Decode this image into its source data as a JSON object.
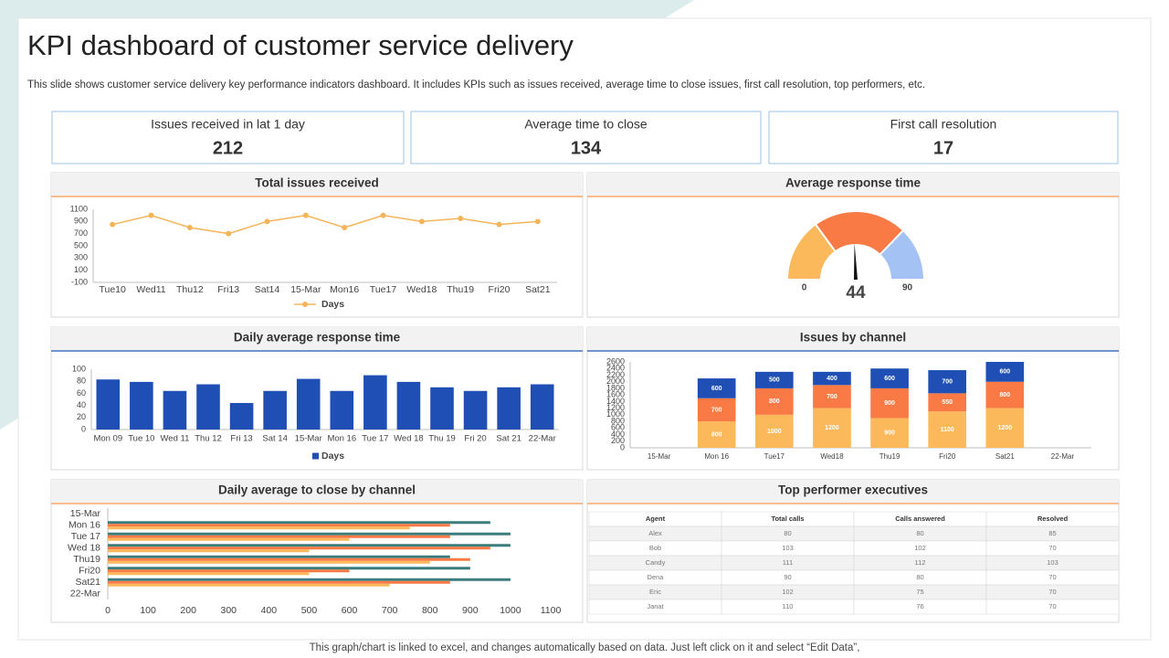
{
  "header": {
    "title": "KPI dashboard of customer service delivery",
    "subtitle": "This slide shows customer service delivery key performance indicators dashboard. It includes KPIs such as issues received, average time to close issues, first call resolution, top performers, etc."
  },
  "kpis": [
    {
      "label": "Issues received in lat 1 day",
      "value": 212
    },
    {
      "label": "Average time to close",
      "value": 134
    },
    {
      "label": "First call resolution",
      "value": 17
    }
  ],
  "chart_data": [
    {
      "type": "line",
      "title": "Total issues received",
      "categories": [
        "Tue10",
        "Wed11",
        "Thu12",
        "Fri13",
        "Sat14",
        "15-Mar",
        "Mon16",
        "Tue17",
        "Wed18",
        "Thu19",
        "Fri20",
        "Sat21"
      ],
      "series": [
        {
          "name": "Days",
          "color": "#f4b55a",
          "values": [
            850,
            1000,
            800,
            700,
            900,
            1000,
            800,
            1000,
            900,
            950,
            850,
            900
          ]
        }
      ],
      "ylim": [
        -100,
        1100
      ],
      "yticks": [
        -100,
        100,
        300,
        500,
        700,
        900,
        1100
      ]
    },
    {
      "type": "gauge",
      "title": "Average response time",
      "min": 0,
      "max": 90,
      "value": 44,
      "bands": [
        27,
        40,
        23
      ],
      "colors": [
        "#fbb95c",
        "#f97a45",
        "#a4c2f4"
      ]
    },
    {
      "type": "bar",
      "title": "Daily average response time",
      "categories": [
        "Mon 09",
        "Tue 10",
        "Wed 11",
        "Thu 12",
        "Fri 13",
        "Sat 14",
        "15-Mar",
        "Mon 16",
        "Tue 17",
        "Wed 18",
        "Thu 19",
        "Fri 20",
        "Sat 21",
        "22-Mar"
      ],
      "series": [
        {
          "name": "Days",
          "color": "#1f4fb4",
          "values": [
            83,
            79,
            64,
            75,
            44,
            64,
            84,
            64,
            90,
            79,
            70,
            64,
            70,
            75
          ]
        }
      ],
      "ylim": [
        0,
        100
      ],
      "yticks": [
        0,
        20,
        40,
        60,
        80,
        100
      ]
    },
    {
      "type": "bar",
      "stacked": true,
      "title": "Issues by channel",
      "categories": [
        "15-Mar",
        "Mon 16",
        "Tue17",
        "Wed18",
        "Thu19",
        "Fri20",
        "Sat21",
        "22-Mar"
      ],
      "series": [
        {
          "color": "#fbb95c",
          "values": [
            null,
            800,
            1000,
            1200,
            900,
            1100,
            1200,
            null
          ]
        },
        {
          "color": "#f97a45",
          "values": [
            null,
            700,
            800,
            700,
            900,
            550,
            800,
            null
          ]
        },
        {
          "color": "#1f4fb4",
          "values": [
            null,
            600,
            500,
            400,
            600,
            700,
            600,
            null
          ]
        }
      ],
      "ylim": [
        0,
        2600
      ],
      "yticks": [
        0,
        200,
        400,
        600,
        800,
        1000,
        1200,
        1400,
        1600,
        1800,
        2000,
        2200,
        2400,
        2600
      ]
    },
    {
      "type": "bar",
      "orientation": "horizontal",
      "title": "Daily average to close by channel",
      "categories": [
        "15-Mar",
        "Mon 16",
        "Tue 17",
        "Wed 18",
        "Thu19",
        "Fri20",
        "Sat21",
        "22-Mar"
      ],
      "series": [
        {
          "color": "#3a7d7c",
          "values": [
            null,
            950,
            1000,
            1000,
            850,
            900,
            1000,
            null
          ]
        },
        {
          "color": "#f97a45",
          "values": [
            null,
            850,
            850,
            950,
            900,
            600,
            850,
            null
          ]
        },
        {
          "color": "#fbb95c",
          "values": [
            null,
            750,
            600,
            500,
            800,
            500,
            700,
            null
          ]
        }
      ],
      "xlim": [
        0,
        1100
      ],
      "xticks": [
        0,
        100,
        200,
        300,
        400,
        500,
        600,
        700,
        800,
        900,
        1000,
        1100
      ]
    }
  ],
  "table": {
    "title": "Top performer executives",
    "columns": [
      "Agent",
      "Total calls",
      "Calls answered",
      "Resolved"
    ],
    "rows": [
      [
        "Alex",
        80,
        80,
        85
      ],
      [
        "Bob",
        103,
        102,
        70
      ],
      [
        "Candy",
        111,
        112,
        103
      ],
      [
        "Dena",
        90,
        80,
        70
      ],
      [
        "Eric",
        102,
        75,
        70
      ],
      [
        "Janat",
        110,
        76,
        70
      ]
    ]
  },
  "footer": "This graph/chart is linked to excel,  and changes automatically based on data. Just left click on it and select “Edit Data”,"
}
